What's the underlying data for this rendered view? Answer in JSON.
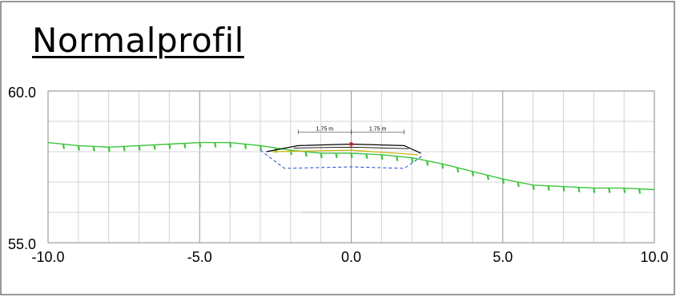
{
  "title": "Normalprofil",
  "chart_data": {
    "type": "line",
    "xlim": [
      -10.0,
      10.0
    ],
    "ylim": [
      55.0,
      60.0
    ],
    "x_ticks": [
      "-10.0",
      "-5.0",
      "0.0",
      "5.0",
      "10.0"
    ],
    "y_ticks": [
      "60.0",
      "55.0"
    ],
    "grid": true,
    "terrain": {
      "color": "#3cc43c",
      "x": [
        -10,
        -9,
        -8,
        -7,
        -6,
        -5,
        -4,
        -3,
        -2,
        -1,
        0,
        1,
        2,
        3,
        4,
        5,
        6,
        7,
        8,
        9,
        10
      ],
      "y": [
        58.3,
        58.2,
        58.15,
        58.2,
        58.25,
        58.3,
        58.3,
        58.2,
        58.05,
        57.95,
        57.95,
        57.9,
        57.8,
        57.6,
        57.35,
        57.1,
        56.9,
        56.85,
        56.8,
        56.8,
        56.75
      ]
    },
    "road_surface": {
      "color": "#000000",
      "x": [
        -2.8,
        -1.75,
        0.0,
        1.75,
        2.3
      ],
      "y": [
        58.0,
        58.2,
        58.25,
        58.2,
        57.95
      ]
    },
    "excavation": {
      "color": "#2244cc",
      "x": [
        -3.0,
        -2.2,
        0.0,
        1.75,
        2.4
      ],
      "y": [
        58.05,
        57.45,
        57.5,
        57.45,
        57.9
      ]
    },
    "centerline_point": {
      "x": 0.0,
      "y": 58.25,
      "color": "#cc2222"
    },
    "dimensions": [
      {
        "label": "1.75 m",
        "from": -1.75,
        "to": 0.0
      },
      {
        "label": "1.75 m",
        "from": 0.0,
        "to": 1.75
      }
    ]
  }
}
